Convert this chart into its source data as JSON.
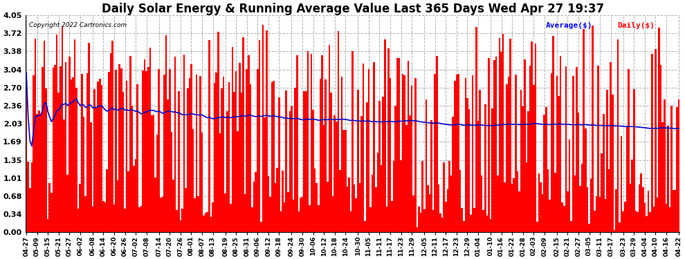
{
  "title": "Daily Solar Energy & Running Average Value Last 365 Days Wed Apr 27 19:37",
  "copyright": "Copyright 2022 Cartronics.com",
  "legend_avg": "Average($)",
  "legend_daily": "Daily($)",
  "ylim": [
    0.0,
    4.05
  ],
  "yticks": [
    0.0,
    0.34,
    0.68,
    1.01,
    1.35,
    1.69,
    2.03,
    2.36,
    2.7,
    3.04,
    3.38,
    3.72,
    4.05
  ],
  "bar_color": "#ff0000",
  "avg_line_color": "#0000cc",
  "background_color": "#ffffff",
  "grid_color": "#b0b0b0",
  "title_fontsize": 12,
  "num_bars": 365,
  "seed": 12345,
  "x_labels": [
    "04-27",
    "05-09",
    "05-15",
    "05-21",
    "05-27",
    "06-02",
    "06-08",
    "06-14",
    "06-20",
    "06-26",
    "07-02",
    "07-08",
    "07-14",
    "07-20",
    "07-26",
    "08-01",
    "08-07",
    "08-13",
    "08-19",
    "08-25",
    "08-31",
    "09-06",
    "09-12",
    "09-18",
    "09-24",
    "09-30",
    "10-06",
    "10-12",
    "10-18",
    "10-24",
    "10-30",
    "11-05",
    "11-11",
    "11-17",
    "11-23",
    "11-29",
    "12-05",
    "12-11",
    "12-17",
    "12-23",
    "12-29",
    "01-04",
    "01-10",
    "01-16",
    "01-22",
    "01-28",
    "02-03",
    "02-09",
    "02-15",
    "02-21",
    "02-27",
    "03-05",
    "03-11",
    "03-17",
    "03-23",
    "03-29",
    "04-04",
    "04-10",
    "04-16",
    "04-22"
  ]
}
